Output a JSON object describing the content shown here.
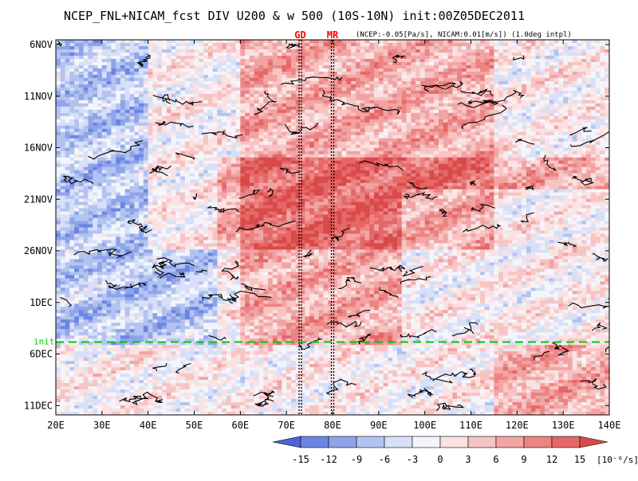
{
  "chart_data": {
    "type": "heatmap",
    "title": "NCEP_FNL+NICAM_fcst DIV U200 & w 500 (10S-10N) init:00Z05DEC2011",
    "subtitle": "(NCEP:-0.05[Pa/s], NICAM:0.01[m/s]) (1.0deg intpl)",
    "x_axis": {
      "tick_labels": [
        "20E",
        "30E",
        "40E",
        "50E",
        "60E",
        "70E",
        "80E",
        "90E",
        "100E",
        "110E",
        "120E",
        "130E",
        "140E"
      ],
      "tick_values": [
        20,
        30,
        40,
        50,
        60,
        70,
        80,
        90,
        100,
        110,
        120,
        130,
        140
      ],
      "range": [
        20,
        140
      ],
      "unit": "degrees longitude east"
    },
    "y_axis": {
      "tick_labels": [
        "6NOV",
        "11NOV",
        "16NOV",
        "21NOV",
        "26NOV",
        "1DEC",
        "6DEC",
        "11DEC"
      ],
      "tick_values": [
        "2011-11-06",
        "2011-11-11",
        "2011-11-16",
        "2011-11-21",
        "2011-11-26",
        "2011-12-01",
        "2011-12-06",
        "2011-12-11"
      ],
      "range": [
        "2011-11-05",
        "2011-12-12"
      ],
      "direction": "time increases downward"
    },
    "vertical_markers": [
      {
        "label": "GD",
        "lon": 73,
        "color": "#ff0000",
        "style": "dotted"
      },
      {
        "label": "MR",
        "lon": 80,
        "color": "#ff0000",
        "style": "dotted"
      }
    ],
    "init_line": {
      "label": "init",
      "date": "2011-12-05",
      "color": "#00cc00",
      "style": "dashed"
    },
    "colorbar": {
      "tick_labels": [
        "-15",
        "-12",
        "-9",
        "-6",
        "-3",
        "0",
        "3",
        "6",
        "9",
        "12",
        "15"
      ],
      "unit_label": "[10⁻⁶/s]",
      "colors": [
        "#4a65d8",
        "#6b85e4",
        "#8ea4ea",
        "#b3c3f0",
        "#d7e0f7",
        "#f4f4fb",
        "#fbe2e2",
        "#f7c4c4",
        "#f2a4a4",
        "#ec8484",
        "#e56767",
        "#d94a4a"
      ]
    },
    "field_patterns": [
      {
        "feature": "positive divergence band (phase 1)",
        "lon_start": 40,
        "lon_end": 115,
        "date_start": "2011-11-05",
        "date_end": "2011-11-26",
        "sign": "positive"
      },
      {
        "feature": "positive divergence band (phase 2)",
        "lon_start": 55,
        "lon_end": 140,
        "date_start": "2011-11-17",
        "date_end": "2011-12-05",
        "sign": "positive"
      },
      {
        "feature": "negative divergence band (west)",
        "lon_start": 20,
        "lon_end": 60,
        "date_start": "2011-11-05",
        "date_end": "2011-12-05",
        "sign": "negative"
      },
      {
        "feature": "negative divergence band (east)",
        "lon_start": 95,
        "lon_end": 140,
        "date_start": "2011-11-20",
        "date_end": "2011-12-05",
        "sign": "negative"
      },
      {
        "feature": "forecast positive cluster",
        "lon_start": 115,
        "lon_end": 140,
        "date_start": "2011-12-05",
        "date_end": "2011-12-12",
        "sign": "positive"
      }
    ]
  }
}
